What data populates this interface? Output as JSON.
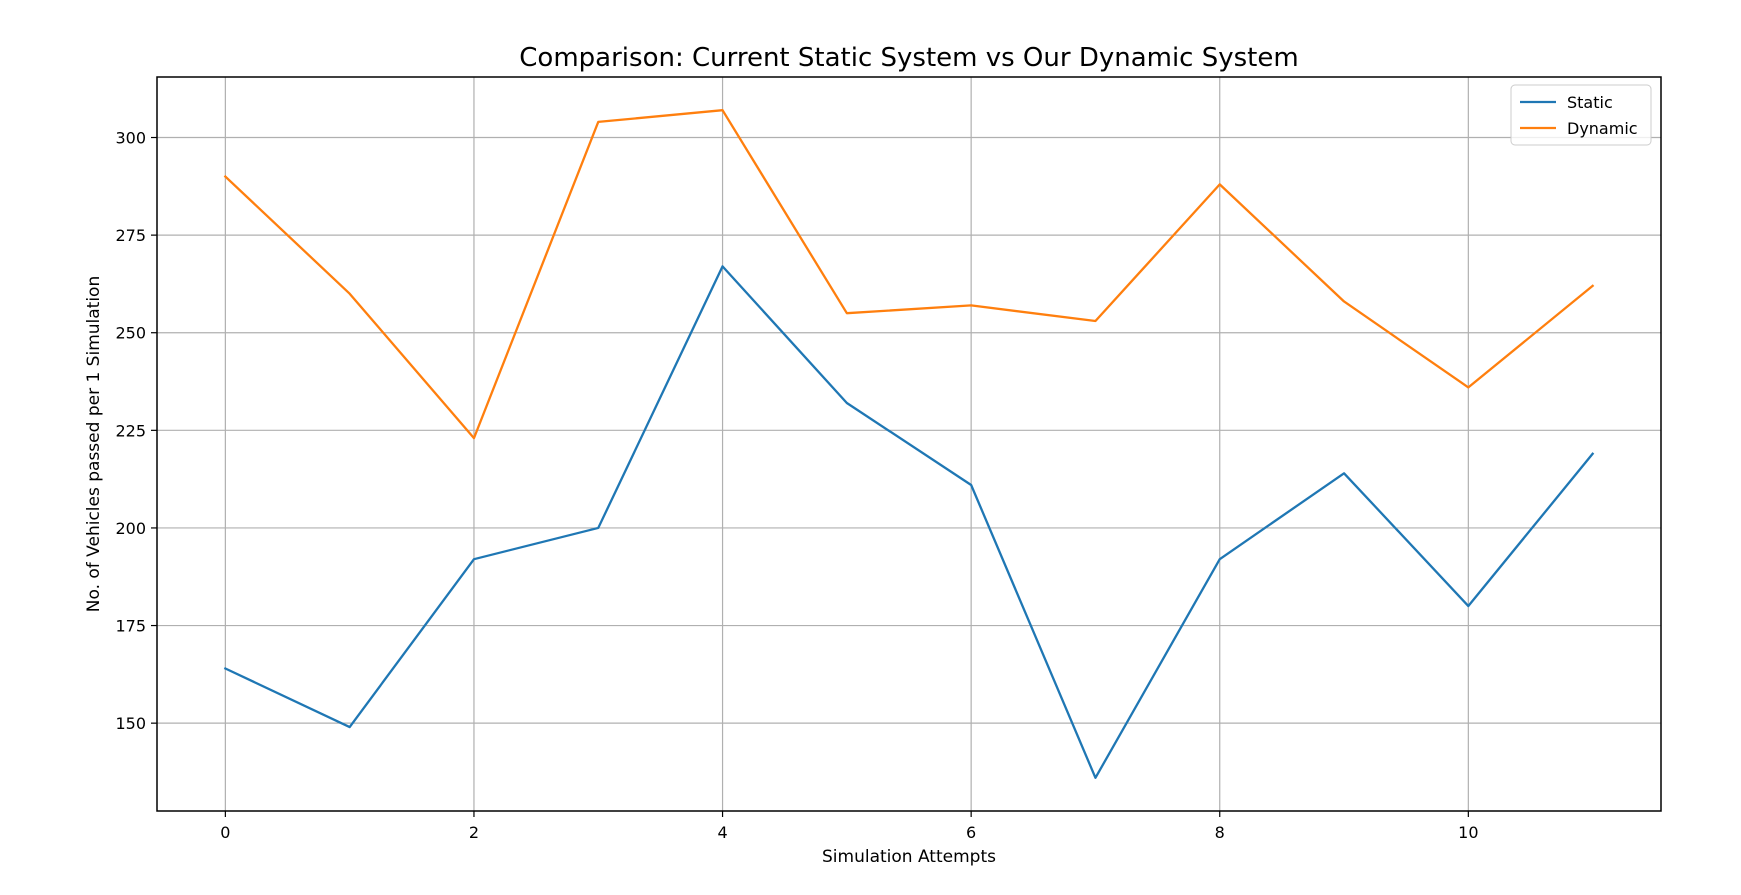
{
  "chart_data": {
    "type": "line",
    "title": "Comparison: Current Static System vs Our Dynamic System",
    "xlabel": "Simulation Attempts",
    "ylabel": "No. of Vehicles passed per 1 Simulation",
    "x": [
      0,
      1,
      2,
      3,
      4,
      5,
      6,
      7,
      8,
      9,
      10,
      11
    ],
    "xlim": [
      -0.55,
      11.55
    ],
    "ylim": [
      127.5,
      315.5
    ],
    "xticks": [
      0,
      2,
      4,
      6,
      8,
      10
    ],
    "yticks": [
      150,
      175,
      200,
      225,
      250,
      275,
      300
    ],
    "grid": true,
    "legend_position": "top-right",
    "series": [
      {
        "name": "Static",
        "color": "#1f77b4",
        "values": [
          164,
          149,
          192,
          200,
          267,
          232,
          211,
          136,
          192,
          214,
          180,
          219
        ]
      },
      {
        "name": "Dynamic",
        "color": "#ff7f0e",
        "values": [
          290,
          260,
          223,
          304,
          307,
          255,
          257,
          253,
          288,
          258,
          236,
          262
        ]
      }
    ]
  }
}
